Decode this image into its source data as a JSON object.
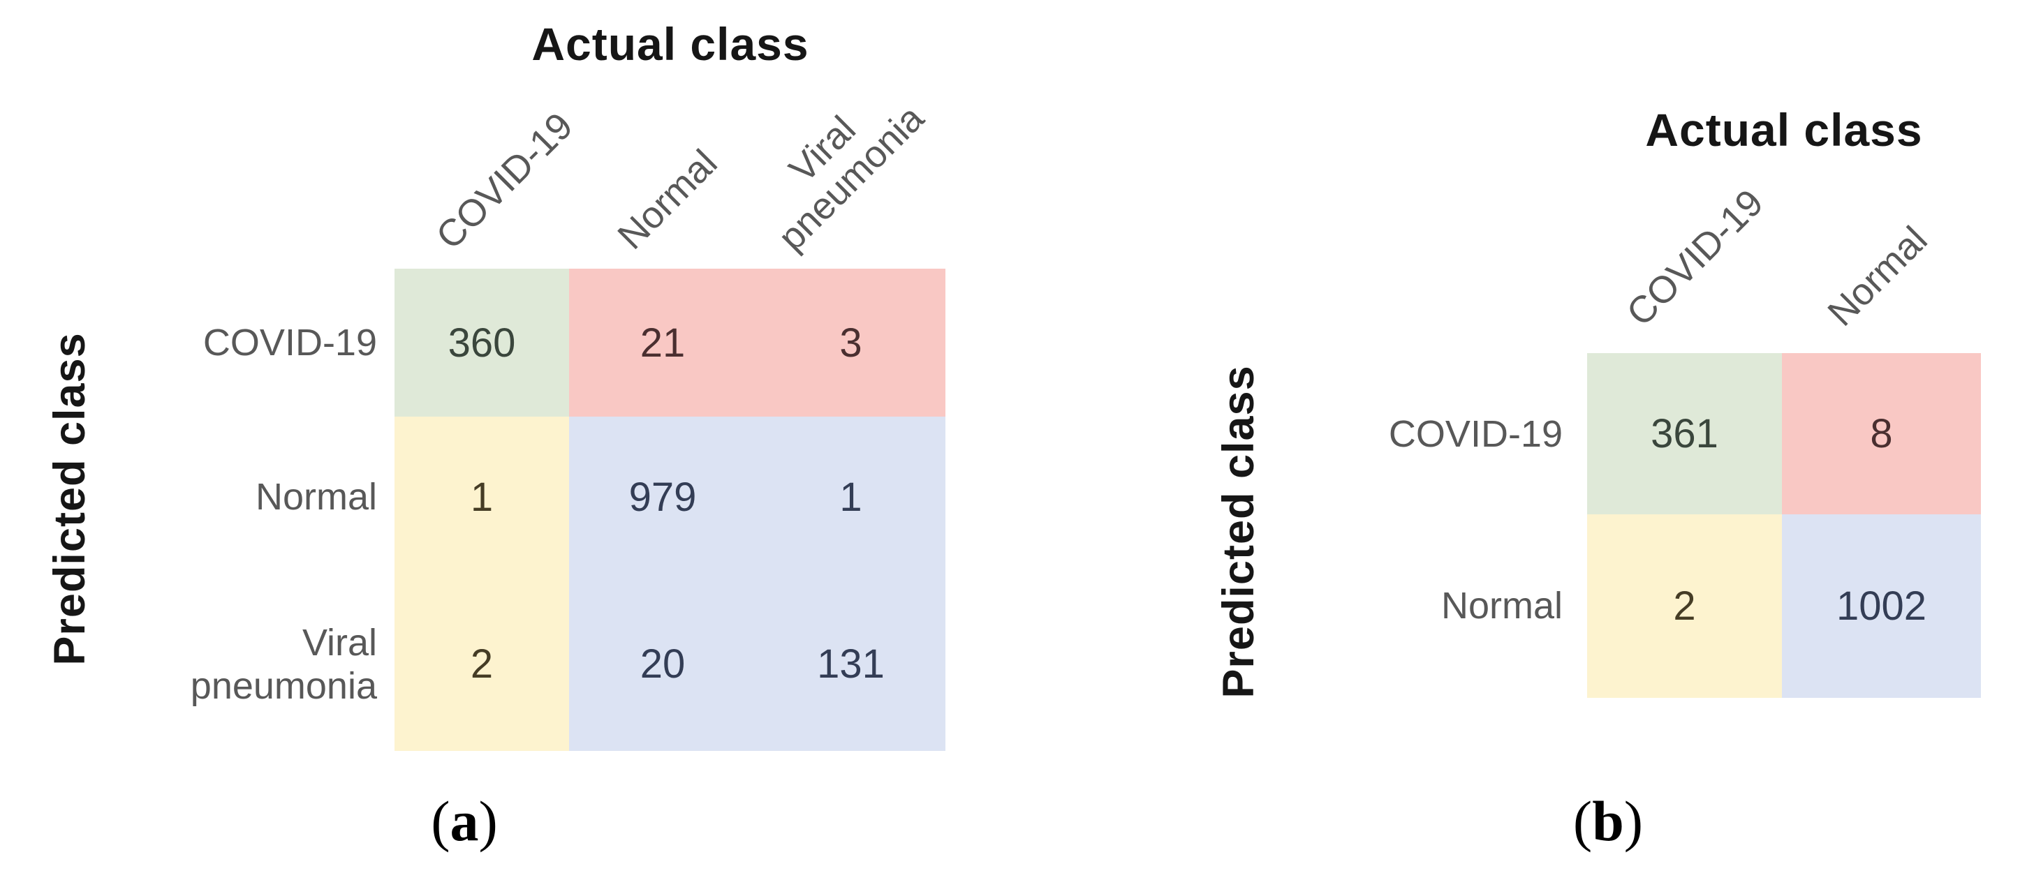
{
  "colors": {
    "green_fill": "#dfe9d8",
    "green_border": "#8fae84",
    "red_fill": "#f9c8c4",
    "red_border": "#a0525a",
    "yellow_fill": "#fdf3cf",
    "yellow_border": "#ddc67a",
    "blue_fill": "#dce3f3",
    "blue_border": "#8f9cc2",
    "label_gray": "#585858",
    "title_black": "#161616"
  },
  "panels": [
    {
      "x_title": "Actual class",
      "y_title": "Predicted class",
      "col_labels": [
        "COVID-19",
        "Normal",
        "Viral\npneumonia"
      ],
      "row_labels": [
        "COVID-19",
        "Normal",
        "Viral\npneumonia"
      ],
      "values": [
        [
          360,
          21,
          3
        ],
        [
          1,
          979,
          1
        ],
        [
          2,
          20,
          131
        ]
      ],
      "caption": {
        "open": "(",
        "letter": "a",
        "close": ")"
      }
    },
    {
      "x_title": "Actual class",
      "y_title": "Predicted class",
      "col_labels": [
        "COVID-19",
        "Normal"
      ],
      "row_labels": [
        "COVID-19",
        "Normal"
      ],
      "values": [
        [
          361,
          8
        ],
        [
          2,
          1002
        ]
      ],
      "caption": {
        "open": "(",
        "letter": "b",
        "close": ")"
      }
    }
  ],
  "chart_data": [
    {
      "type": "heatmap",
      "title": "Actual class",
      "xlabel": "Actual class",
      "ylabel": "Predicted class",
      "x_categories": [
        "COVID-19",
        "Normal",
        "Viral pneumonia"
      ],
      "y_categories": [
        "COVID-19",
        "Normal",
        "Viral pneumonia"
      ],
      "values": [
        [
          360,
          21,
          3
        ],
        [
          1,
          979,
          1
        ],
        [
          2,
          20,
          131
        ]
      ],
      "panel_label": "(a)",
      "legend": "none",
      "grid": "cell borders colored by quadrant: true-COVID green, actual-other/predicted-COVID pink, actual-COVID/predicted-other yellow, remainder blue"
    },
    {
      "type": "heatmap",
      "title": "Actual class",
      "xlabel": "Actual class",
      "ylabel": "Predicted class",
      "x_categories": [
        "COVID-19",
        "Normal"
      ],
      "y_categories": [
        "COVID-19",
        "Normal"
      ],
      "values": [
        [
          361,
          8
        ],
        [
          2,
          1002
        ]
      ],
      "panel_label": "(b)",
      "legend": "none",
      "grid": "cell borders colored by quadrant: true-COVID green, false-positive pink, false-negative yellow, true-normal blue"
    }
  ]
}
